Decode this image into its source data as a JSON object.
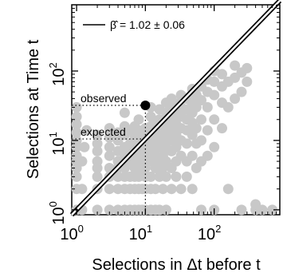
{
  "chart_data": {
    "type": "scatter",
    "xlabel": "Selections in Δt before t",
    "ylabel": "Selections at Time t",
    "xscale": "log",
    "yscale": "log",
    "xlim": [
      0.85,
      900
    ],
    "ylim": [
      0.85,
      900
    ],
    "x_ticks": [
      {
        "base": "10",
        "exp": "0"
      },
      {
        "base": "10",
        "exp": "1"
      },
      {
        "base": "10",
        "exp": "2"
      }
    ],
    "y_ticks": [
      {
        "base": "10",
        "exp": "0"
      },
      {
        "base": "10",
        "exp": "1"
      },
      {
        "base": "10",
        "exp": "2"
      }
    ],
    "legend": {
      "label": "β̂ = 1.02 ± 0.06",
      "position": "top-left"
    },
    "fit_line": {
      "slope": 1.02,
      "intercept": 0,
      "color": "#000000"
    },
    "highlight": {
      "x": 10,
      "y": 32,
      "color": "#000000"
    },
    "annotations": [
      {
        "text": "observed",
        "y": 32
      },
      {
        "text": "expected",
        "y": 10.5
      }
    ],
    "point_color": "#c8c8c8",
    "points": [
      [
        1,
        1
      ],
      [
        1,
        2
      ],
      [
        1,
        3
      ],
      [
        1,
        4
      ],
      [
        1,
        5
      ],
      [
        1,
        6
      ],
      [
        1,
        8
      ],
      [
        1,
        10
      ],
      [
        1,
        13
      ],
      [
        1,
        17
      ],
      [
        1,
        22
      ],
      [
        1,
        30
      ],
      [
        1.2,
        1
      ],
      [
        1.2,
        2
      ],
      [
        1.2,
        5
      ],
      [
        1.3,
        8
      ],
      [
        1.4,
        14
      ],
      [
        2,
        1
      ],
      [
        2,
        2
      ],
      [
        2,
        3
      ],
      [
        2,
        4
      ],
      [
        2,
        5
      ],
      [
        2,
        7
      ],
      [
        2,
        9
      ],
      [
        2,
        12
      ],
      [
        3,
        1
      ],
      [
        3,
        2
      ],
      [
        3,
        3
      ],
      [
        3,
        4
      ],
      [
        3,
        6
      ],
      [
        3,
        8
      ],
      [
        3,
        11
      ],
      [
        3,
        15
      ],
      [
        4,
        1
      ],
      [
        4,
        2
      ],
      [
        4,
        3
      ],
      [
        4,
        4
      ],
      [
        4,
        5
      ],
      [
        4,
        7
      ],
      [
        4,
        10
      ],
      [
        4,
        13
      ],
      [
        5,
        1
      ],
      [
        5,
        2
      ],
      [
        5,
        3
      ],
      [
        5,
        4
      ],
      [
        5,
        6
      ],
      [
        5,
        8
      ],
      [
        5,
        12
      ],
      [
        5,
        16
      ],
      [
        5,
        25
      ],
      [
        6,
        1
      ],
      [
        6,
        2
      ],
      [
        6,
        3
      ],
      [
        6,
        5
      ],
      [
        6,
        7
      ],
      [
        6,
        9
      ],
      [
        6,
        14
      ],
      [
        7,
        1
      ],
      [
        7,
        2
      ],
      [
        7,
        3
      ],
      [
        7,
        4
      ],
      [
        7,
        6
      ],
      [
        7,
        8
      ],
      [
        7,
        11
      ],
      [
        7,
        16
      ],
      [
        8,
        1
      ],
      [
        8,
        2
      ],
      [
        8,
        3
      ],
      [
        8,
        5
      ],
      [
        8,
        7
      ],
      [
        8,
        10
      ],
      [
        8,
        14
      ],
      [
        8,
        20
      ],
      [
        9,
        1
      ],
      [
        9,
        2
      ],
      [
        9,
        4
      ],
      [
        9,
        6
      ],
      [
        9,
        9
      ],
      [
        9,
        13
      ],
      [
        10,
        1
      ],
      [
        10,
        2
      ],
      [
        10,
        3
      ],
      [
        10,
        4
      ],
      [
        10,
        5
      ],
      [
        10,
        6
      ],
      [
        10,
        8
      ],
      [
        10,
        11
      ],
      [
        10,
        15
      ],
      [
        12,
        1
      ],
      [
        12,
        2
      ],
      [
        12,
        3
      ],
      [
        12,
        5
      ],
      [
        12,
        7
      ],
      [
        12,
        9
      ],
      [
        12,
        12
      ],
      [
        12,
        16
      ],
      [
        12,
        22
      ],
      [
        12,
        30
      ],
      [
        14,
        1
      ],
      [
        14,
        2
      ],
      [
        14,
        4
      ],
      [
        14,
        6
      ],
      [
        14,
        9
      ],
      [
        14,
        13
      ],
      [
        14,
        18
      ],
      [
        16,
        1
      ],
      [
        16,
        3
      ],
      [
        16,
        5
      ],
      [
        16,
        8
      ],
      [
        16,
        11
      ],
      [
        16,
        15
      ],
      [
        16,
        20
      ],
      [
        16,
        28
      ],
      [
        18,
        2
      ],
      [
        18,
        4
      ],
      [
        18,
        6
      ],
      [
        18,
        9
      ],
      [
        18,
        13
      ],
      [
        18,
        19
      ],
      [
        20,
        1
      ],
      [
        20,
        3
      ],
      [
        20,
        5
      ],
      [
        20,
        8
      ],
      [
        20,
        12
      ],
      [
        20,
        17
      ],
      [
        20,
        25
      ],
      [
        20,
        35
      ],
      [
        24,
        2
      ],
      [
        24,
        4
      ],
      [
        24,
        7
      ],
      [
        24,
        10
      ],
      [
        24,
        14
      ],
      [
        24,
        20
      ],
      [
        24,
        28
      ],
      [
        24,
        40
      ],
      [
        28,
        3
      ],
      [
        28,
        5
      ],
      [
        28,
        8
      ],
      [
        28,
        12
      ],
      [
        28,
        17
      ],
      [
        28,
        24
      ],
      [
        28,
        34
      ],
      [
        33,
        2
      ],
      [
        33,
        6
      ],
      [
        33,
        10
      ],
      [
        33,
        15
      ],
      [
        33,
        22
      ],
      [
        33,
        30
      ],
      [
        33,
        45
      ],
      [
        40,
        3
      ],
      [
        40,
        5
      ],
      [
        40,
        9
      ],
      [
        40,
        14
      ],
      [
        40,
        20
      ],
      [
        40,
        28
      ],
      [
        40,
        40
      ],
      [
        48,
        2
      ],
      [
        48,
        6
      ],
      [
        48,
        12
      ],
      [
        48,
        18
      ],
      [
        48,
        25
      ],
      [
        48,
        35
      ],
      [
        48,
        55
      ],
      [
        55,
        4
      ],
      [
        55,
        9
      ],
      [
        55,
        15
      ],
      [
        55,
        30
      ],
      [
        55,
        45
      ],
      [
        65,
        1
      ],
      [
        65,
        5
      ],
      [
        65,
        10
      ],
      [
        65,
        20
      ],
      [
        65,
        38
      ],
      [
        65,
        60
      ],
      [
        80,
        6
      ],
      [
        80,
        14
      ],
      [
        80,
        30
      ],
      [
        80,
        50
      ],
      [
        80,
        75
      ],
      [
        100,
        1
      ],
      [
        100,
        8
      ],
      [
        100,
        20
      ],
      [
        100,
        45
      ],
      [
        100,
        70
      ],
      [
        100,
        100
      ],
      [
        130,
        15
      ],
      [
        130,
        35
      ],
      [
        130,
        60
      ],
      [
        130,
        90
      ],
      [
        160,
        2
      ],
      [
        160,
        30
      ],
      [
        160,
        70
      ],
      [
        200,
        40
      ],
      [
        200,
        80
      ],
      [
        200,
        120
      ],
      [
        250,
        1
      ],
      [
        250,
        50
      ],
      [
        250,
        95
      ],
      [
        300,
        70
      ],
      [
        300,
        110
      ],
      [
        400,
        1
      ],
      [
        400,
        1.2
      ],
      [
        500,
        1
      ],
      [
        700,
        1
      ]
    ]
  }
}
